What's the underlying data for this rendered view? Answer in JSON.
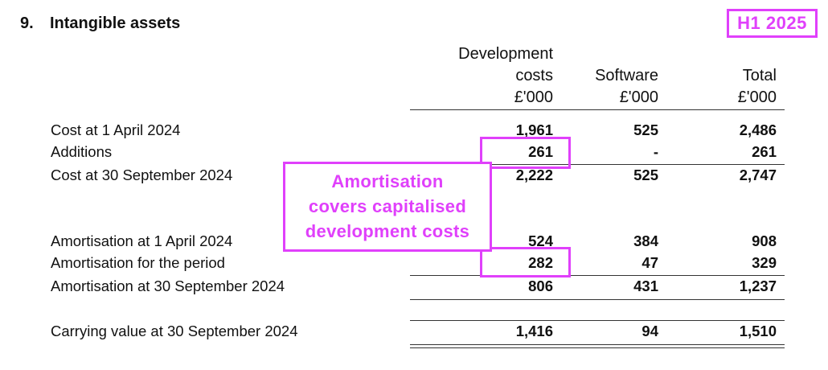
{
  "section": {
    "number": "9.",
    "title": "Intangible assets"
  },
  "tag": "H1 2025",
  "columns": [
    {
      "lines": [
        "Development",
        "costs",
        "£'000"
      ]
    },
    {
      "lines": [
        "Software",
        "£'000"
      ]
    },
    {
      "lines": [
        "Total",
        "£'000"
      ]
    }
  ],
  "rows": [
    {
      "label": "Cost at 1 April 2024",
      "dev": "1,961",
      "software": "525",
      "total": "2,486"
    },
    {
      "label": "Additions",
      "dev": "261",
      "software": "-",
      "total": "261"
    },
    {
      "label": "Cost at 30 September 2024",
      "dev": "2,222",
      "software": "525",
      "total": "2,747"
    },
    {
      "label": "Amortisation at 1 April 2024",
      "dev": "524",
      "software": "384",
      "total": "908"
    },
    {
      "label": "Amortisation for the period",
      "dev": "282",
      "software": "47",
      "total": "329"
    },
    {
      "label": "Amortisation at 30 September 2024",
      "dev": "806",
      "software": "431",
      "total": "1,237"
    },
    {
      "label": "Carrying value at 30 September 2024",
      "dev": "1,416",
      "software": "94",
      "total": "1,510"
    }
  ],
  "annotation": [
    "Amortisation",
    "covers capitalised",
    "development costs"
  ],
  "highlight_color": "#e040fb"
}
